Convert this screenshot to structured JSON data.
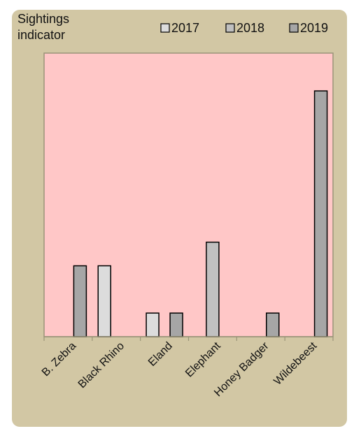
{
  "chart_data": {
    "type": "bar",
    "ylabel_lines": [
      "Sightings",
      "indicator"
    ],
    "categories": [
      "B. Zebra",
      "Black Rhino",
      "Eland",
      "Elephant",
      "Honey Badger",
      "Wildebeest"
    ],
    "series": [
      {
        "name": "2017",
        "color": "#dcdcdc",
        "values": [
          0,
          1.5,
          0.5,
          0,
          0,
          0
        ]
      },
      {
        "name": "2018",
        "color": "#c0c0c0",
        "values": [
          0,
          0,
          0,
          2.0,
          0,
          0
        ]
      },
      {
        "name": "2019",
        "color": "#a6a6a6",
        "values": [
          1.5,
          0,
          0.5,
          0,
          0.5,
          5.2
        ]
      }
    ],
    "ylim": [
      0,
      6
    ],
    "legend_position": "top-right",
    "plot_background": "#ffc7c7",
    "panel_background": "#d2c7a4",
    "grid": false
  }
}
